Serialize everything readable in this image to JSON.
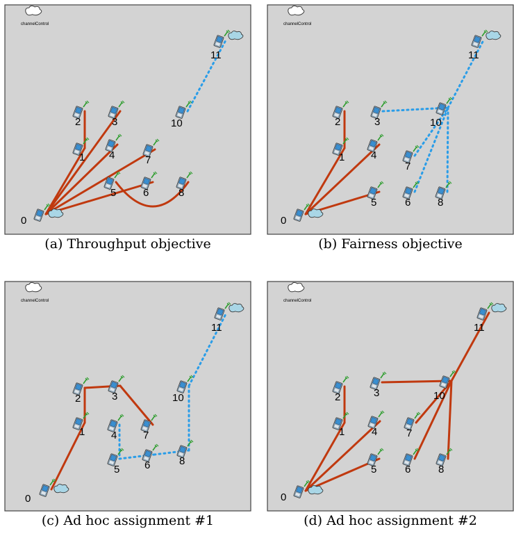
{
  "panels": [
    {
      "caption": "(a) Throughput objective",
      "channel_label": "channelControl",
      "nodes": [
        "0",
        "1",
        "2",
        "3",
        "4",
        "5",
        "6",
        "7",
        "8",
        "10",
        "11"
      ],
      "links": [
        {
          "from": "0",
          "to": "1",
          "style": "solid"
        },
        {
          "from": "1",
          "to": "2",
          "style": "solid"
        },
        {
          "from": "0",
          "to": "3",
          "style": "solid"
        },
        {
          "from": "0",
          "to": "4",
          "style": "solid"
        },
        {
          "from": "0",
          "to": "7",
          "style": "solid"
        },
        {
          "from": "0",
          "to": "6",
          "style": "solid"
        },
        {
          "from": "5",
          "to": "8",
          "style": "solid-curve"
        },
        {
          "from": "10",
          "to": "11",
          "style": "dotted"
        }
      ]
    },
    {
      "caption": "(b) Fairness objective",
      "channel_label": "channelControl",
      "nodes": [
        "0",
        "1",
        "2",
        "3",
        "4",
        "5",
        "6",
        "7",
        "8",
        "10",
        "11"
      ],
      "links": [
        {
          "from": "0",
          "to": "1",
          "style": "solid"
        },
        {
          "from": "1",
          "to": "2",
          "style": "solid"
        },
        {
          "from": "0",
          "to": "4",
          "style": "solid"
        },
        {
          "from": "0",
          "to": "5",
          "style": "solid"
        },
        {
          "from": "3",
          "to": "10",
          "style": "dotted"
        },
        {
          "from": "7",
          "to": "10",
          "style": "dotted"
        },
        {
          "from": "6",
          "to": "10",
          "style": "dotted"
        },
        {
          "from": "8",
          "to": "10",
          "style": "dotted"
        },
        {
          "from": "10",
          "to": "11",
          "style": "dotted"
        }
      ]
    },
    {
      "caption": "(c) Ad hoc assignment #1",
      "channel_label": "channelControl",
      "nodes": [
        "0",
        "1",
        "2",
        "3",
        "4",
        "5",
        "6",
        "7",
        "8",
        "10",
        "11"
      ],
      "links": [
        {
          "from": "0",
          "to": "1",
          "style": "solid"
        },
        {
          "from": "1",
          "to": "2",
          "style": "solid"
        },
        {
          "from": "2",
          "to": "3",
          "style": "solid"
        },
        {
          "from": "3",
          "to": "7",
          "style": "solid"
        },
        {
          "from": "4",
          "to": "5",
          "style": "dotted"
        },
        {
          "from": "5",
          "to": "6",
          "style": "dotted"
        },
        {
          "from": "6",
          "to": "8",
          "style": "dotted"
        },
        {
          "from": "8",
          "to": "10",
          "style": "dotted"
        },
        {
          "from": "10",
          "to": "11",
          "style": "dotted"
        }
      ]
    },
    {
      "caption": "(d) Ad hoc assignment #2",
      "channel_label": "channelControl",
      "nodes": [
        "0",
        "1",
        "2",
        "3",
        "4",
        "5",
        "6",
        "7",
        "8",
        "10",
        "11"
      ],
      "links": [
        {
          "from": "0",
          "to": "1",
          "style": "solid"
        },
        {
          "from": "1",
          "to": "2",
          "style": "solid"
        },
        {
          "from": "0",
          "to": "4",
          "style": "solid"
        },
        {
          "from": "0",
          "to": "5",
          "style": "solid"
        },
        {
          "from": "3",
          "to": "10",
          "style": "solid"
        },
        {
          "from": "7",
          "to": "10",
          "style": "solid"
        },
        {
          "from": "6",
          "to": "10",
          "style": "solid"
        },
        {
          "from": "8",
          "to": "10",
          "style": "solid"
        },
        {
          "from": "10",
          "to": "11",
          "style": "solid"
        }
      ]
    }
  ],
  "colors": {
    "solid_link": "#c0390f",
    "dotted_link": "#2a9de8",
    "canvas": "#d3d3d3",
    "node_body": "#3a8fd0"
  },
  "icons": {
    "node": "wireless-host-icon",
    "cloud": "cloud-icon"
  }
}
